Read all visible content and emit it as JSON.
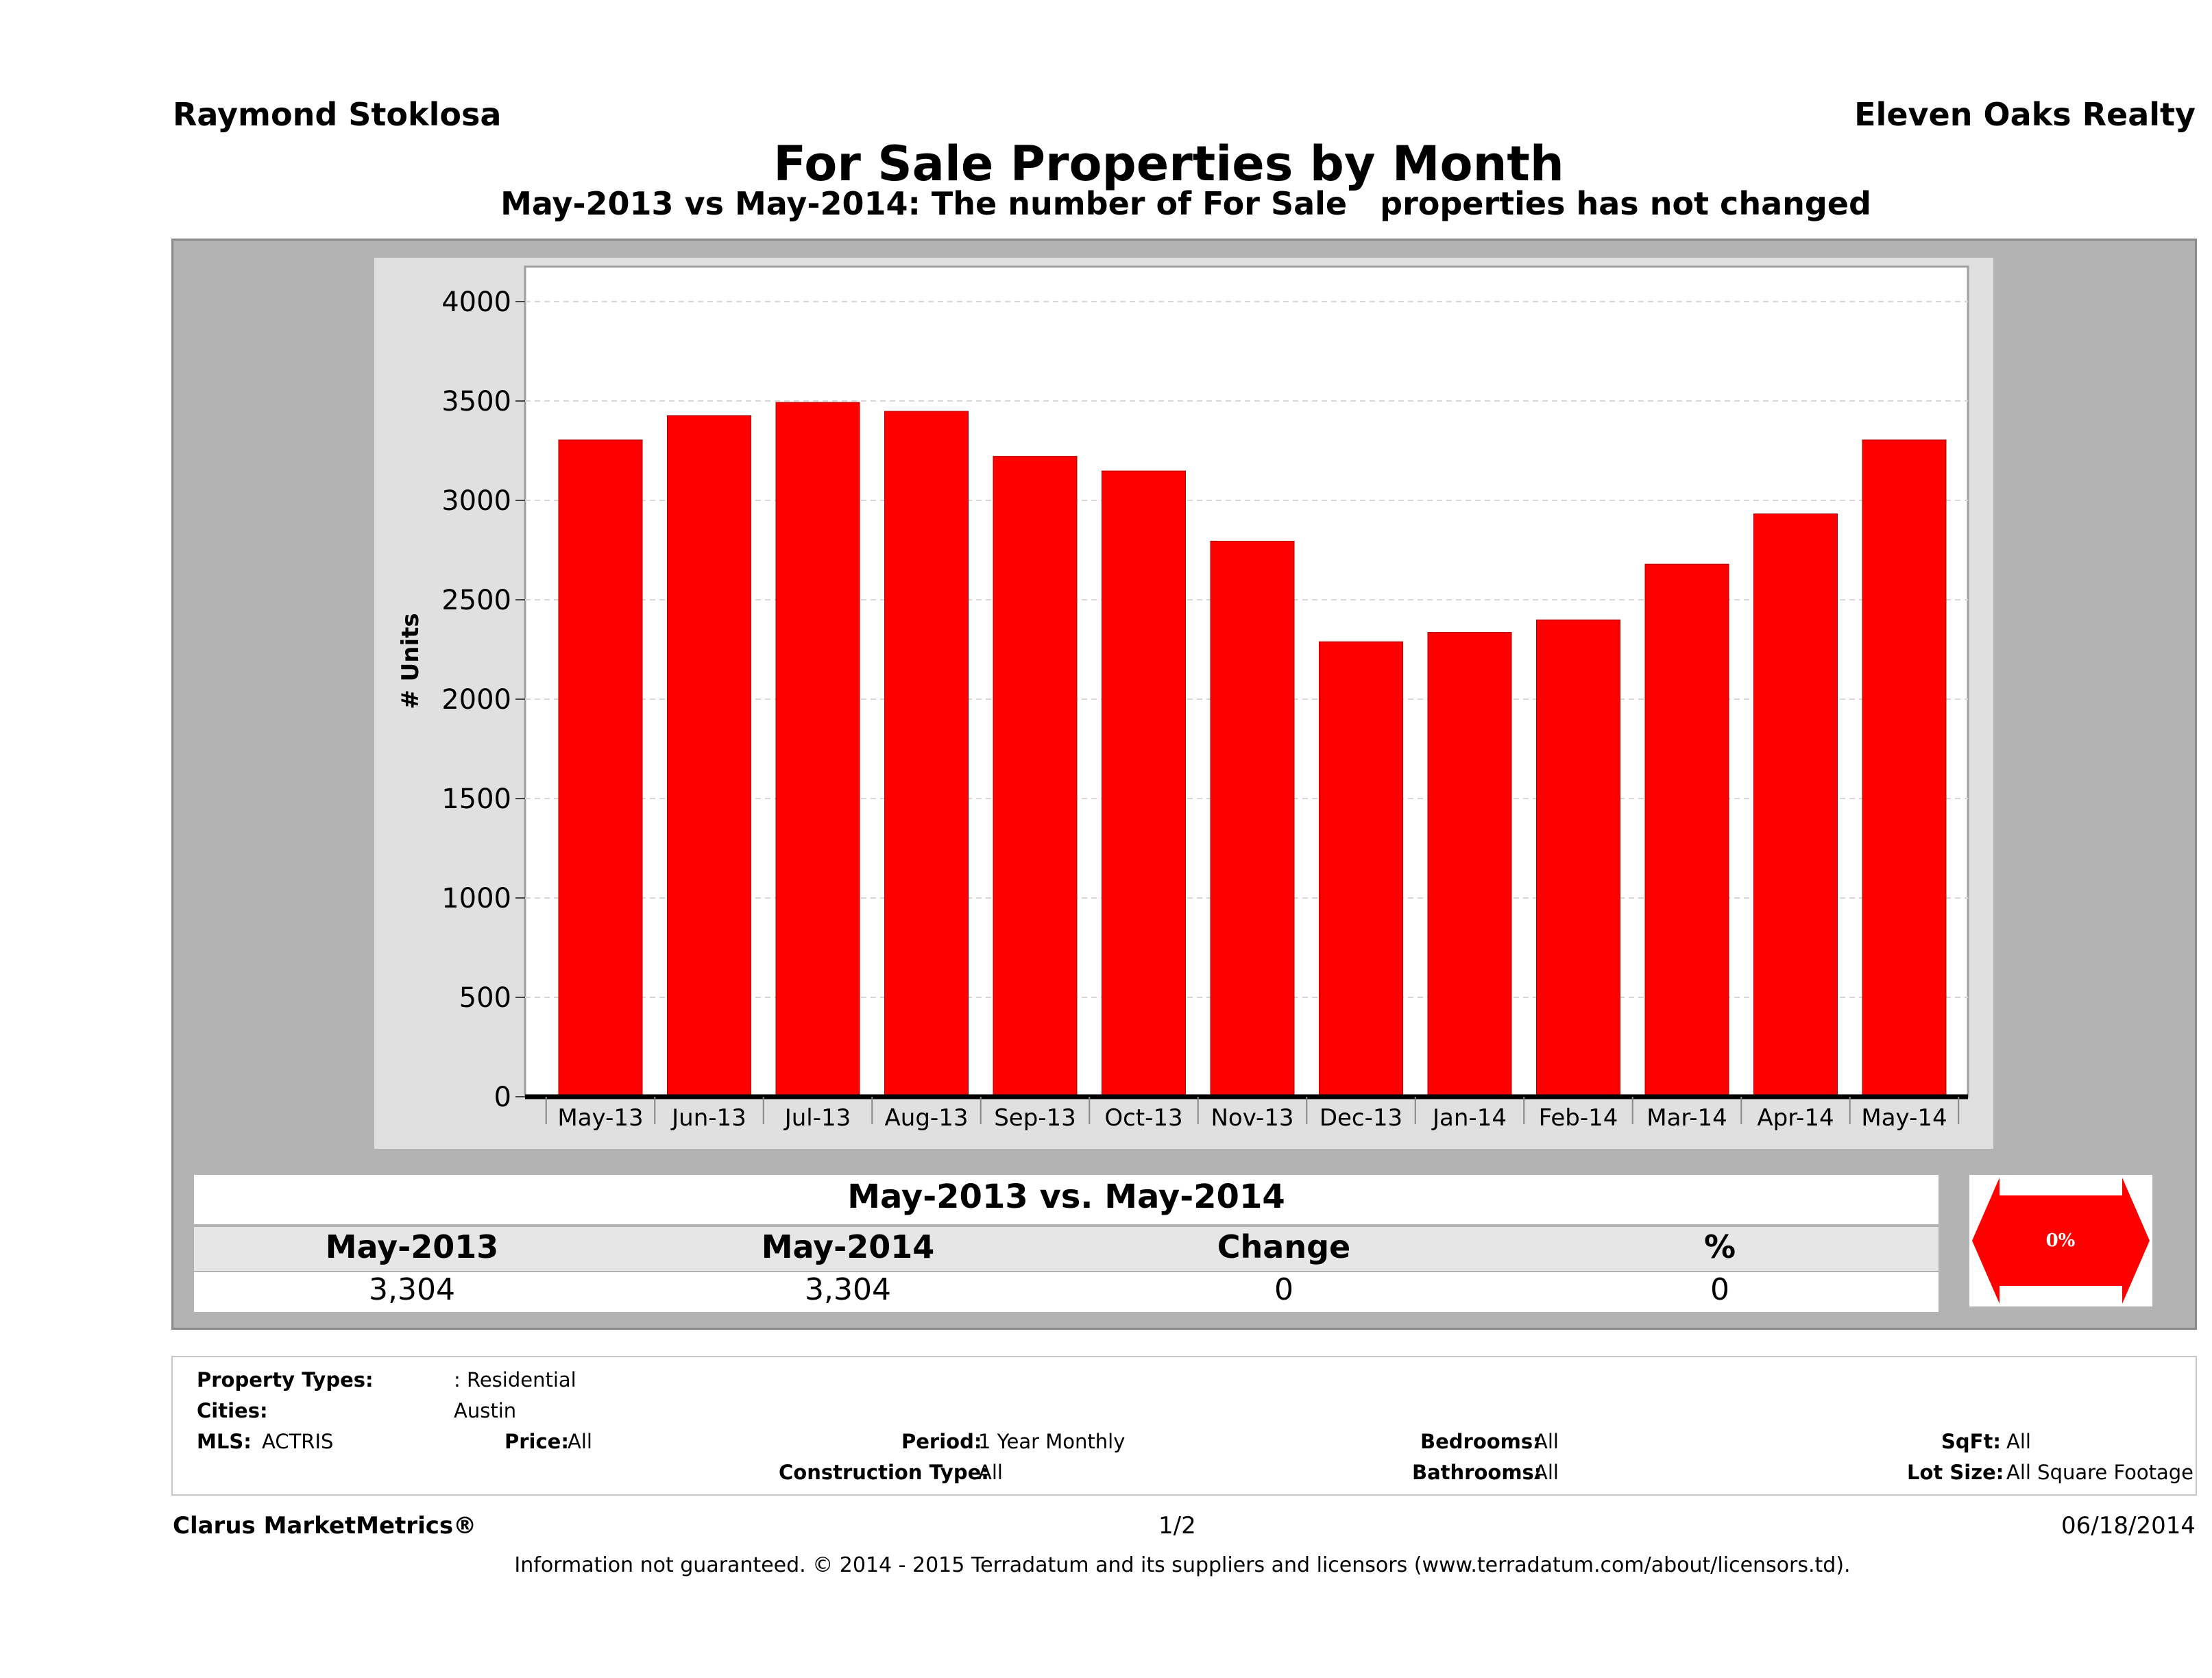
{
  "header": {
    "agent_name": "Raymond Stoklosa",
    "brokerage": "Eleven Oaks Realty",
    "title": "For Sale Properties by Month",
    "subtitle": "May-2013 vs May-2014: The number of For Sale   properties has not changed"
  },
  "chart_data": {
    "type": "bar",
    "title": "For Sale Properties by Month",
    "xlabel": "",
    "ylabel": "# Units",
    "ylim": [
      0,
      4000
    ],
    "yticks": [
      0,
      500,
      1000,
      1500,
      2000,
      2500,
      3000,
      3500,
      4000
    ],
    "grid": true,
    "categories": [
      "May-13",
      "Jun-13",
      "Jul-13",
      "Aug-13",
      "Sep-13",
      "Oct-13",
      "Nov-13",
      "Dec-13",
      "Jan-14",
      "Feb-14",
      "Mar-14",
      "Apr-14",
      "May-14"
    ],
    "values": [
      3304,
      3426,
      3493,
      3448,
      3222,
      3148,
      2795,
      2289,
      2336,
      2399,
      2679,
      2932,
      3304
    ],
    "bar_color": "#ff0000"
  },
  "summary": {
    "title": "May-2013 vs. May-2014",
    "headers": [
      "May-2013",
      "May-2014",
      "Change",
      "%"
    ],
    "values": [
      "3,304",
      "3,304",
      "0",
      "0"
    ],
    "indicator_label": "0%",
    "indicator_color": "#ff0000"
  },
  "filters": {
    "property_types_label": "Property Types:",
    "property_types_value": ": Residential",
    "cities_label": "Cities:",
    "cities_value": "Austin",
    "mls_label": "MLS:",
    "mls_value": "ACTRIS",
    "price_label": "Price:",
    "price_value": "All",
    "period_label": "Period:",
    "period_value": "1 Year Monthly",
    "construction_label": "Construction Type:",
    "construction_value": "All",
    "bedrooms_label": "Bedrooms:",
    "bedrooms_value": "All",
    "bathrooms_label": "Bathrooms:",
    "bathrooms_value": "All",
    "sqft_label": "SqFt:",
    "sqft_value": "All",
    "lot_label": "Lot Size:",
    "lot_value": "All Square Footage"
  },
  "footer": {
    "product": "Clarus MarketMetrics®",
    "page": "1/2",
    "date": "06/18/2014",
    "disclaimer": "Information not guaranteed. © 2014 - 2015 Terradatum and its suppliers and licensors (www.terradatum.com/about/licensors.td)."
  }
}
